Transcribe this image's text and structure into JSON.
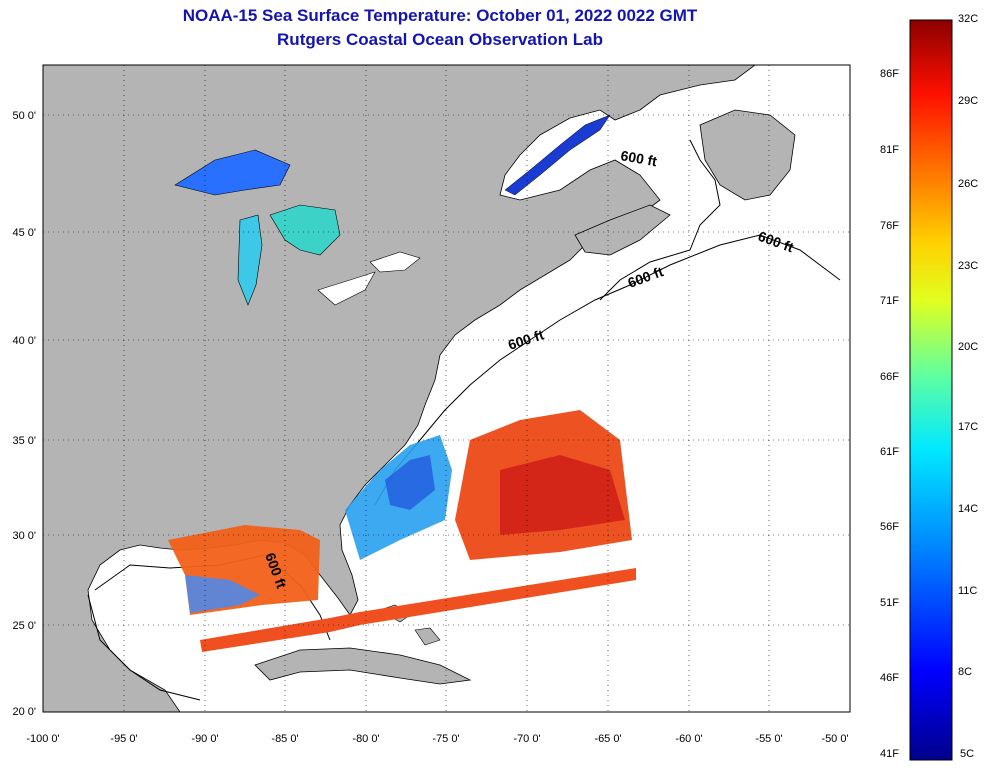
{
  "header": {
    "title": "NOAA-15 Sea Surface Temperature:  October 01, 2022 0022 GMT",
    "subtitle": "Rutgers Coastal Ocean Observation Lab"
  },
  "map": {
    "lon_range": [
      -100,
      -50
    ],
    "lat_range": [
      20,
      52.5
    ],
    "lat_ticks": [
      "50 0'",
      "45 0'",
      "40 0'",
      "35 0'",
      "30 0'",
      "25 0'",
      "20 0'"
    ],
    "lon_ticks": [
      "-100 0'",
      "-95 0'",
      "-90 0'",
      "-85 0'",
      "-80 0'",
      "-75 0'",
      "-70 0'",
      "-65 0'",
      "-60 0'",
      "-55 0'",
      "-50 0'"
    ],
    "contour_labels": [
      "600 ft",
      "600 ft",
      "600 ft",
      "600 ft",
      "600 ft"
    ],
    "colors": {
      "land": "#b4b4b4",
      "ocean": "#ffffff",
      "grid": "#000000"
    }
  },
  "colorbar": {
    "celsius_labels": [
      "32C",
      "29C",
      "26C",
      "23C",
      "20C",
      "17C",
      "14C",
      "11C",
      "8C",
      "5C"
    ],
    "fahrenheit_labels": [
      "86F",
      "81F",
      "76F",
      "71F",
      "66F",
      "61F",
      "56F",
      "51F",
      "46F",
      "41F"
    ],
    "range_c": [
      5,
      32
    ],
    "colors_low_to_high": [
      "#00008c",
      "#0000ff",
      "#0080ff",
      "#00e6ff",
      "#40ffc0",
      "#c0ff40",
      "#ffe600",
      "#ff8000",
      "#ff0000",
      "#8c0000"
    ]
  }
}
